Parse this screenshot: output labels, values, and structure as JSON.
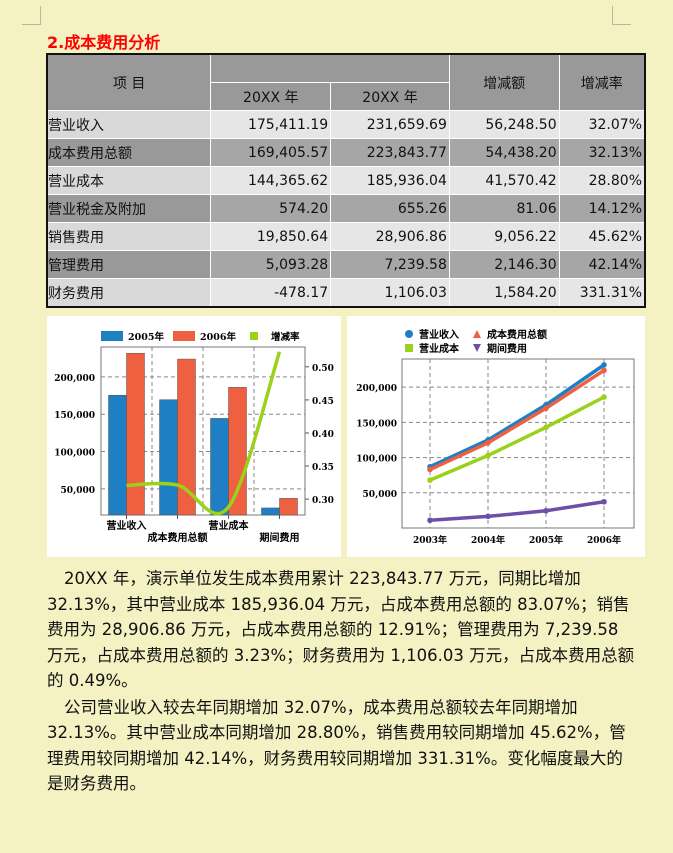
{
  "heading": "2.成本费用分析",
  "table": {
    "headers": {
      "item": "项  目",
      "year1": "20XX 年",
      "year2": "20XX 年",
      "change": "增减额",
      "rate": "增减率"
    },
    "rows": [
      {
        "name": "营业收入",
        "y1": "175,411.19",
        "y2": "231,659.69",
        "change": "56,248.50",
        "rate": "32.07%"
      },
      {
        "name": "成本费用总额",
        "y1": "169,405.57",
        "y2": "223,843.77",
        "change": "54,438.20",
        "rate": "32.13%"
      },
      {
        "name": "营业成本",
        "y1": "144,365.62",
        "y2": "185,936.04",
        "change": "41,570.42",
        "rate": "28.80%"
      },
      {
        "name": "营业税金及附加",
        "y1": "574.20",
        "y2": "655.26",
        "change": "81.06",
        "rate": "14.12%"
      },
      {
        "name": "销售费用",
        "y1": "19,850.64",
        "y2": "28,906.86",
        "change": "9,056.22",
        "rate": "45.62%"
      },
      {
        "name": "管理费用",
        "y1": "5,093.28",
        "y2": "7,239.58",
        "change": "2,146.30",
        "rate": "42.14%"
      },
      {
        "name": "财务费用",
        "y1": "-478.17",
        "y2": "1,106.03",
        "change": "1,584.20",
        "rate": "331.31%"
      }
    ]
  },
  "chart_data": [
    {
      "type": "bar",
      "categories": [
        "营业收入",
        "成本费用总额",
        "营业成本",
        "期间费用"
      ],
      "series": [
        {
          "name": "2005年",
          "type": "bar",
          "axis": "left",
          "color": "#1f7fc4",
          "values": [
            175411,
            169406,
            144366,
            24465
          ]
        },
        {
          "name": "2006年",
          "type": "bar",
          "axis": "left",
          "color": "#ee6040",
          "values": [
            231660,
            223844,
            185936,
            37253
          ]
        },
        {
          "name": "增减率",
          "type": "line",
          "axis": "right",
          "color": "#9bd11b",
          "values": [
            0.3207,
            0.3213,
            0.288,
            0.5227
          ]
        }
      ],
      "ylim": [
        15000,
        240000
      ],
      "y_ticks": [
        "50,000",
        "100,000",
        "150,000",
        "200,000"
      ],
      "y2lim": [
        0.276,
        0.53
      ],
      "y2_ticks": [
        "0.30",
        "0.35",
        "0.40",
        "0.45",
        "0.50"
      ],
      "grid": true,
      "legend": "top"
    },
    {
      "type": "line",
      "categories": [
        "2003年",
        "2004年",
        "2005年",
        "2006年"
      ],
      "series": [
        {
          "name": "营业收入",
          "marker": "circle",
          "color": "#1f7fc4",
          "values": [
            87000,
            125000,
            175000,
            231660
          ]
        },
        {
          "name": "成本费用总额",
          "marker": "triangle-up",
          "color": "#ee6040",
          "values": [
            83000,
            121000,
            170000,
            223844
          ]
        },
        {
          "name": "营业成本",
          "marker": "square",
          "color": "#9bd11b",
          "values": [
            68000,
            103000,
            143000,
            185936
          ]
        },
        {
          "name": "期间费用",
          "marker": "triangle-down",
          "color": "#6e4fa8",
          "values": [
            11000,
            16500,
            24465,
            37253
          ]
        }
      ],
      "ylim": [
        0,
        240000
      ],
      "y_ticks": [
        "50,000",
        "100,000",
        "150,000",
        "200,000"
      ],
      "grid": true,
      "legend": "top"
    }
  ],
  "paragraphs": [
    "20XX 年，演示单位发生成本费用累计 223,843.77 万元，同期比增加 32.13%，其中营业成本 185,936.04 万元，占成本费用总额的 83.07%；销售费用为 28,906.86 万元，占成本费用总额的 12.91%；管理费用为 7,239.58 万元，占成本费用总额的 3.23%；财务费用为 1,106.03 万元，占成本费用总额的 0.49%。",
    "公司营业收入较去年同期增加 32.07%，成本费用总额较去年同期增加 32.13%。其中营业成本同期增加 28.80%，销售费用较同期增加 45.62%，管理费用较同期增加 42.14%，财务费用较同期增加 331.31%。变化幅度最大的是财务费用。"
  ]
}
